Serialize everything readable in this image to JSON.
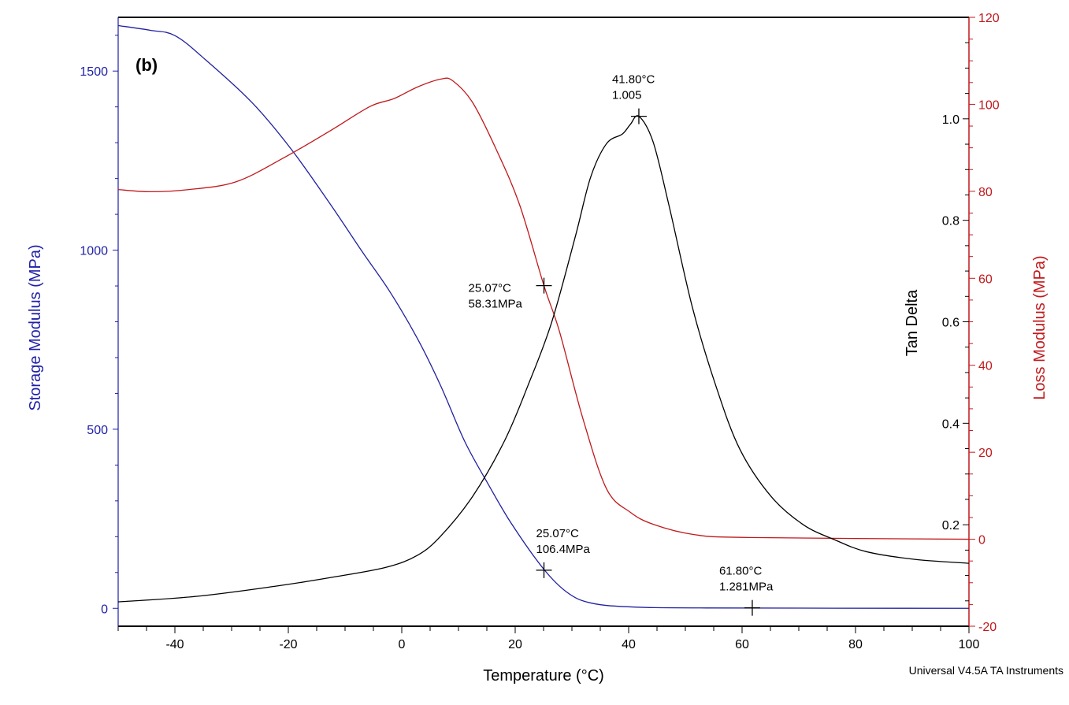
{
  "chart_data": {
    "type": "line",
    "panel_label": "(b)",
    "xlabel": "Temperature (°C)",
    "xlim": [
      -50,
      100
    ],
    "xticks": [
      -40,
      -20,
      0,
      20,
      40,
      60,
      80,
      100
    ],
    "grid": false,
    "footer": "Universal V4.5A TA Instruments",
    "axes": {
      "storage": {
        "label": "Storage Modulus (MPa)",
        "ylim": [
          -50,
          1650
        ],
        "ticks": [
          0,
          500,
          1000,
          1500
        ],
        "color": "#1f1fa8",
        "side": "left"
      },
      "tan_delta": {
        "label": "Tan Delta",
        "ylim": [
          0,
          1.2
        ],
        "ticks": [
          "0.2",
          "0.4",
          "0.6",
          "0.8",
          "1.0"
        ],
        "color": "#000000",
        "side": "right-inner"
      },
      "loss": {
        "label": "Loss Modulus (MPa)",
        "ylim": [
          -20,
          120
        ],
        "ticks": [
          -20,
          0,
          20,
          40,
          60,
          80,
          100,
          120
        ],
        "color": "#c0191c",
        "side": "right-outer"
      }
    },
    "series": [
      {
        "axis": "storage",
        "color": "#2020a0",
        "x": [
          -50,
          -44.4,
          -40,
          -34.7,
          -26.4,
          -19.4,
          -12.5,
          -6.9,
          -2.1,
          2.8,
          6.9,
          11.1,
          15.3,
          19.4,
          25,
          29.2,
          33.3,
          40.3,
          54,
          100
        ],
        "y": [
          1627,
          1614,
          1599,
          1533,
          1412,
          1280,
          1126,
          994,
          884,
          752,
          620,
          466,
          345,
          235,
          110,
          44,
          15,
          4,
          1,
          0
        ]
      },
      {
        "axis": "loss",
        "color": "#c0191c",
        "x": [
          -50,
          -44.4,
          -37.5,
          -29.2,
          -20.8,
          -12.5,
          -5.6,
          -1.4,
          2.8,
          6.9,
          9,
          12.5,
          16.7,
          20.8,
          25.07,
          27.8,
          31.9,
          36.1,
          40.3,
          44.4,
          51.4,
          61.1,
          100
        ],
        "y": [
          80.4,
          79.9,
          80.4,
          82.2,
          87.7,
          94,
          99.5,
          101.3,
          104,
          105.8,
          105.4,
          100.4,
          89.5,
          76.8,
          58.3,
          47.8,
          27.9,
          11.6,
          6.2,
          3.4,
          1.1,
          0.4,
          0
        ]
      },
      {
        "axis": "tan_delta",
        "color": "#000000",
        "x": [
          -50,
          -36.1,
          -22.2,
          -12.5,
          -2.8,
          2.8,
          6.9,
          12.5,
          18.1,
          22.2,
          26.4,
          30.6,
          33.3,
          36.1,
          38.9,
          40.3,
          41.8,
          44.3,
          47.1,
          51.25,
          55.4,
          59.6,
          65.1,
          70.8,
          76.4,
          81.9,
          90.3,
          100
        ],
        "y": [
          0.048,
          0.059,
          0.079,
          0.096,
          0.116,
          0.14,
          0.178,
          0.256,
          0.365,
          0.473,
          0.598,
          0.768,
          0.885,
          0.951,
          0.97,
          0.989,
          1.005,
          0.955,
          0.83,
          0.628,
          0.473,
          0.349,
          0.256,
          0.2,
          0.17,
          0.147,
          0.132,
          0.124
        ]
      }
    ],
    "annotations": [
      {
        "axis": "tan_delta",
        "x": 41.8,
        "y": 1.005,
        "line1": "41.80°C",
        "line2": "1.005"
      },
      {
        "axis": "loss",
        "x": 25.07,
        "y": 58.31,
        "line1": "25.07°C",
        "line2": "58.31MPa"
      },
      {
        "axis": "storage",
        "x": 25.07,
        "y": 106.4,
        "line1": "25.07°C",
        "line2": "106.4MPa"
      },
      {
        "axis": "storage",
        "x": 61.8,
        "y": 1.281,
        "line1": "61.80°C",
        "line2": "1.281MPa"
      }
    ]
  }
}
